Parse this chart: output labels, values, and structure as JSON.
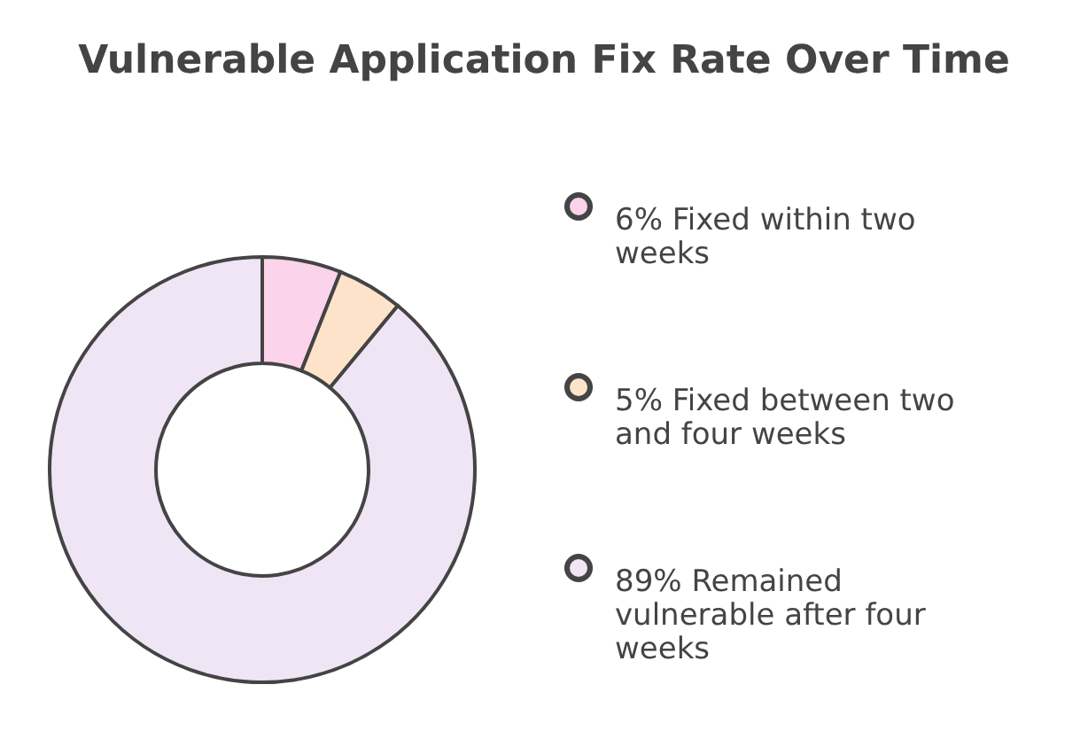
{
  "chart_data": {
    "type": "donut",
    "title": "Vulnerable Application Fix Rate Over Time",
    "categories": [
      "6% Fixed within two weeks",
      "5% Fixed between two and four weeks",
      "89% Remained vulnerable after four weeks"
    ],
    "values": [
      6,
      5,
      89
    ],
    "colors": [
      "#fbd3ea",
      "#fde3c9",
      "#efe5f5"
    ],
    "legend": "right"
  }
}
